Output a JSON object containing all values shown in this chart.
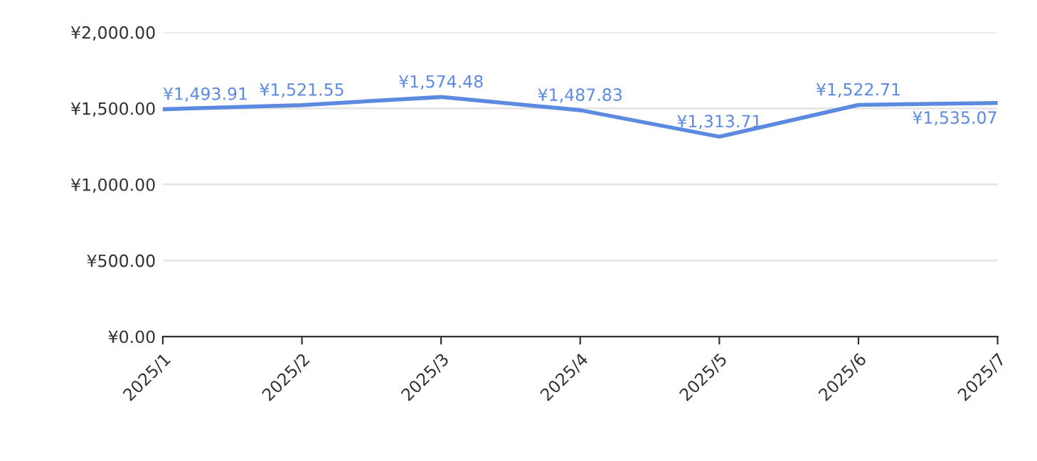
{
  "chart_data": {
    "type": "line",
    "categories": [
      "2025/1",
      "2025/2",
      "2025/3",
      "2025/4",
      "2025/5",
      "2025/6",
      "2025/7"
    ],
    "series": [
      {
        "color": "#5b8ae0",
        "values": [
          1493.91,
          1521.55,
          1574.48,
          1487.83,
          1313.71,
          1522.71,
          1535.07
        ],
        "value_labels": [
          "¥1,493.91",
          "¥1,521.55",
          "¥1,574.48",
          "¥1,487.83",
          "¥1,313.71",
          "¥1,522.71",
          "¥1,535.07"
        ]
      }
    ],
    "ylim": [
      0,
      2000
    ],
    "yticks": [
      {
        "value": 0,
        "label": "¥0.00"
      },
      {
        "value": 500,
        "label": "¥500.00"
      },
      {
        "value": 1000,
        "label": "¥1,000.00"
      },
      {
        "value": 1500,
        "label": "¥1,500.00"
      },
      {
        "value": 2000,
        "label": "¥2,000.00"
      }
    ],
    "grid": "y",
    "legend": false,
    "marker": "none",
    "line_style": "solid"
  }
}
